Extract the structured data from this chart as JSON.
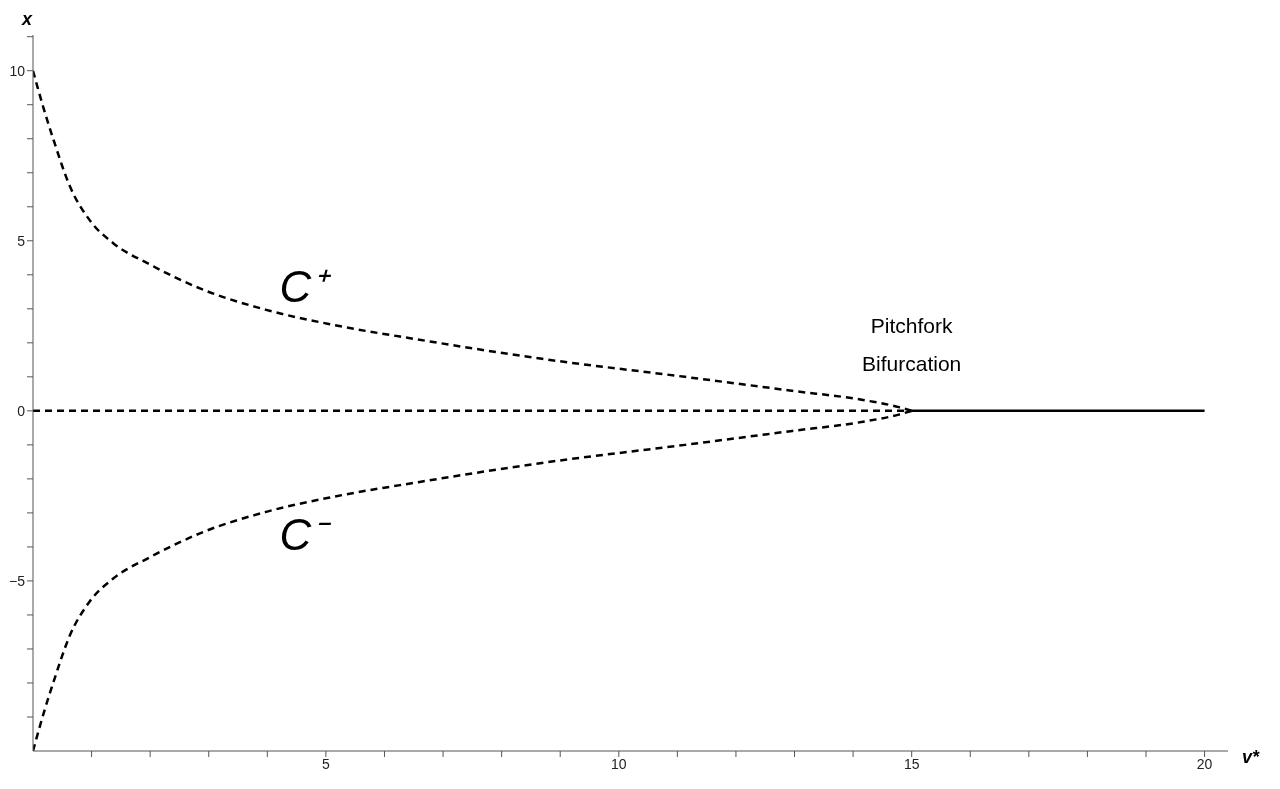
{
  "chart_data": {
    "type": "line",
    "xlabel": "v*",
    "ylabel": "x",
    "xlim": [
      0,
      20.4
    ],
    "ylim": [
      -10,
      11.05
    ],
    "xticks": [
      {
        "value": 1,
        "label": null
      },
      {
        "value": 2,
        "label": null
      },
      {
        "value": 3,
        "label": null
      },
      {
        "value": 4,
        "label": null
      },
      5,
      {
        "value": 6,
        "label": null
      },
      {
        "value": 7,
        "label": null
      },
      {
        "value": 8,
        "label": null
      },
      {
        "value": 9,
        "label": null
      },
      10,
      {
        "value": 11,
        "label": null
      },
      {
        "value": 12,
        "label": null
      },
      {
        "value": 13,
        "label": null
      },
      {
        "value": 14,
        "label": null
      },
      15,
      {
        "value": 16,
        "label": null
      },
      {
        "value": 17,
        "label": null
      },
      {
        "value": 18,
        "label": null
      },
      {
        "value": 19,
        "label": null
      },
      20
    ],
    "yticks": [
      {
        "value": -9,
        "label": null
      },
      {
        "value": -8,
        "label": null
      },
      {
        "value": -7,
        "label": null
      },
      {
        "value": -6,
        "label": null
      },
      {
        "value": -5,
        "label": "−5"
      },
      {
        "value": -4,
        "label": null
      },
      {
        "value": -3,
        "label": null
      },
      {
        "value": -2,
        "label": null
      },
      {
        "value": -1,
        "label": null
      },
      0,
      {
        "value": 1,
        "label": null
      },
      {
        "value": 2,
        "label": null
      },
      {
        "value": 3,
        "label": null
      },
      {
        "value": 4,
        "label": null
      },
      5,
      {
        "value": 6,
        "label": null
      },
      {
        "value": 7,
        "label": null
      },
      {
        "value": 8,
        "label": null
      },
      {
        "value": 9,
        "label": null
      },
      10,
      {
        "value": 11,
        "label": null
      }
    ],
    "marker": "none",
    "series": [
      {
        "name": "C⁺",
        "color": "#000000",
        "line_style": "dashed",
        "x": [
          0,
          0.18,
          0.35,
          0.63,
          0.97,
          1.37,
          2.0,
          2.85,
          3.98,
          5.12,
          6.6,
          8.69,
          11.13,
          12.96,
          14.17,
          14.78,
          15.0
        ],
        "values": [
          10,
          8.9,
          7.97,
          6.6,
          5.6,
          4.93,
          4.3,
          3.6,
          2.97,
          2.53,
          2.09,
          1.53,
          1.0,
          0.59,
          0.32,
          0.11,
          0
        ]
      },
      {
        "name": "C⁻",
        "color": "#000000",
        "line_style": "dashed",
        "x": [
          0,
          0.18,
          0.35,
          0.63,
          0.97,
          1.37,
          2.0,
          2.85,
          3.98,
          5.12,
          6.6,
          8.69,
          11.13,
          12.96,
          14.17,
          14.78,
          15.0
        ],
        "values": [
          -10,
          -8.9,
          -7.97,
          -6.6,
          -5.6,
          -4.93,
          -4.3,
          -3.6,
          -2.97,
          -2.53,
          -2.09,
          -1.53,
          -1.0,
          -0.59,
          -0.32,
          -0.11,
          0
        ]
      },
      {
        "color": "#000000",
        "line_style": "dashed",
        "x": [
          0,
          15
        ],
        "values": [
          0,
          0
        ]
      },
      {
        "color": "#000000",
        "line_style": "solid",
        "x": [
          15,
          20
        ],
        "values": [
          0,
          0
        ]
      }
    ],
    "annotations": [
      {
        "text": "Pitchfork Bifurcation",
        "x": 15,
        "y": 0
      }
    ]
  }
}
